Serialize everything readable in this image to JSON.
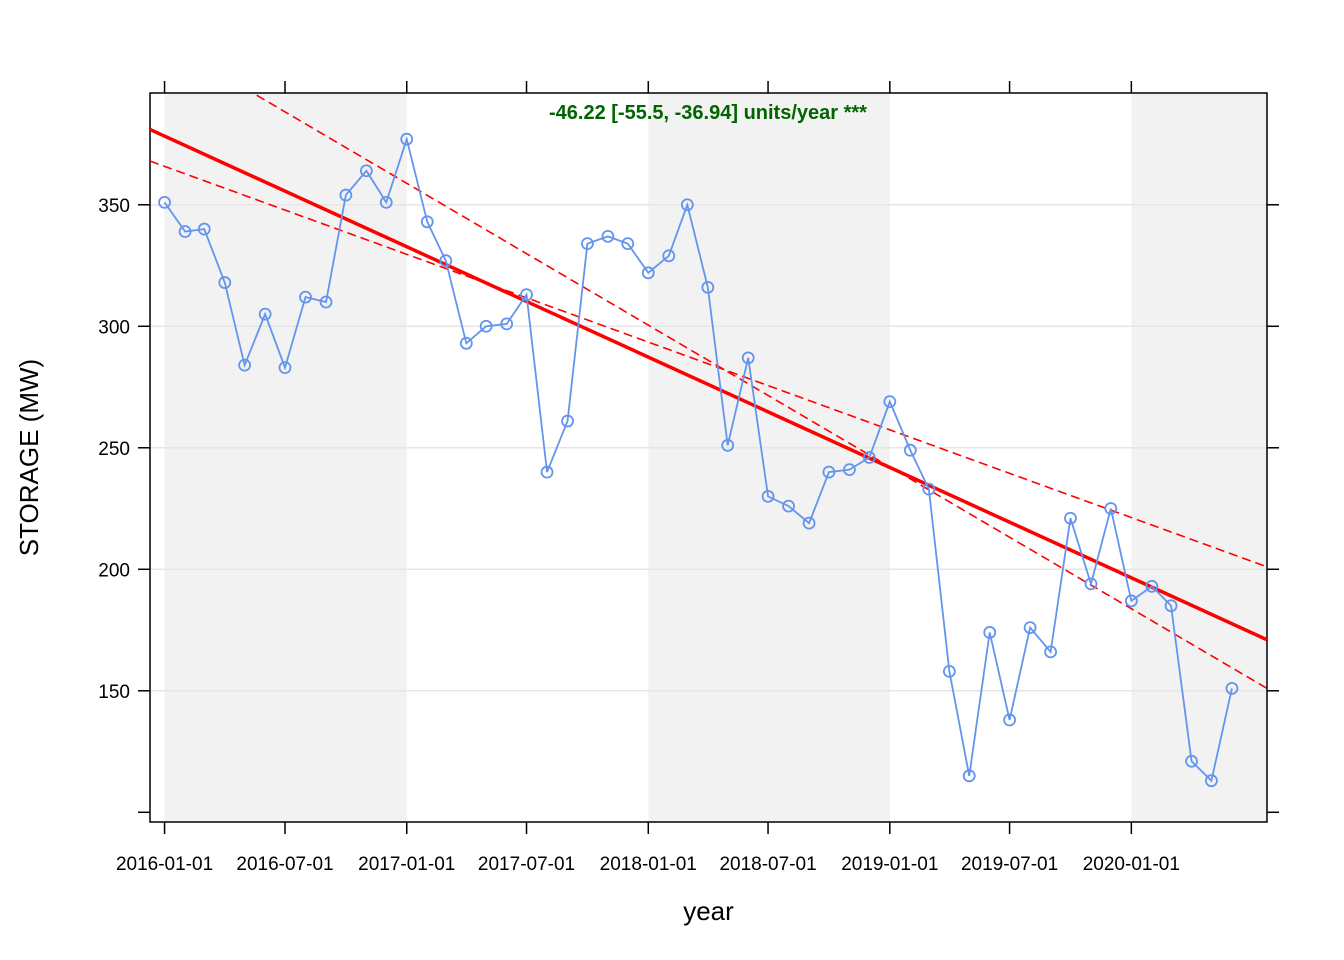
{
  "chart_data": {
    "type": "line",
    "xlabel": "year",
    "ylabel": "STORAGE (MW)",
    "annotation": "-46.22 [-55.5, -36.94] units/year ***",
    "x_tick_labels": [
      "2016-01-01",
      "2016-07-01",
      "2017-01-01",
      "2017-07-01",
      "2018-01-01",
      "2018-07-01",
      "2019-01-01",
      "2019-07-01",
      "2020-01-01"
    ],
    "y_ticks": [
      100,
      150,
      200,
      250,
      300,
      350
    ],
    "y_tick_labels": [
      "",
      "150",
      "200",
      "250",
      "300",
      "350"
    ],
    "xlim": [
      "2015-12-10",
      "2020-07-24"
    ],
    "ylim": [
      96,
      396
    ],
    "shaded_years": [
      2016,
      2018,
      2020
    ],
    "colors": {
      "series": "#6495ed",
      "trend": "#ff0000",
      "annotation": "#006400",
      "shade": "#f2f2f2",
      "grid": "#e6e6e6"
    },
    "series": [
      {
        "x": [
          "2016-01-01",
          "2016-02-01",
          "2016-03-01",
          "2016-04-01",
          "2016-05-01",
          "2016-06-01",
          "2016-07-01",
          "2016-08-01",
          "2016-09-01",
          "2016-10-01",
          "2016-11-01",
          "2016-12-01",
          "2017-01-01",
          "2017-02-01",
          "2017-03-01",
          "2017-04-01",
          "2017-05-01",
          "2017-06-01",
          "2017-07-01",
          "2017-08-01",
          "2017-09-01",
          "2017-10-01",
          "2017-11-01",
          "2017-12-01",
          "2018-01-01",
          "2018-02-01",
          "2018-03-01",
          "2018-04-01",
          "2018-05-01",
          "2018-06-01",
          "2018-07-01",
          "2018-08-01",
          "2018-09-01",
          "2018-10-01",
          "2018-11-01",
          "2018-12-01",
          "2019-01-01",
          "2019-02-01",
          "2019-03-01",
          "2019-04-01",
          "2019-05-01",
          "2019-06-01",
          "2019-07-01",
          "2019-08-01",
          "2019-09-01",
          "2019-10-01",
          "2019-11-01",
          "2019-12-01",
          "2020-01-01",
          "2020-02-01",
          "2020-03-01",
          "2020-04-01",
          "2020-05-01",
          "2020-06-01"
        ],
        "y": [
          351,
          339,
          340,
          318,
          284,
          305,
          283,
          312,
          310,
          354,
          364,
          351,
          377,
          343,
          327,
          293,
          300,
          301,
          313,
          240,
          261,
          334,
          337,
          334,
          322,
          329,
          350,
          316,
          251,
          287,
          230,
          226,
          219,
          240,
          241,
          246,
          269,
          249,
          233,
          158,
          115,
          174,
          138,
          176,
          166,
          221,
          194,
          225,
          187,
          193,
          185,
          121,
          113,
          151
        ]
      }
    ],
    "trend": {
      "x_start": "2015-12-10",
      "y_start": 381,
      "x_end": "2020-07-24",
      "y_end": 171
    },
    "ci_upper": {
      "x_start": "2015-12-10",
      "y_start": 368,
      "x_end": "2020-07-24",
      "y_end": 201
    },
    "ci_lower": {
      "x_start": "2016-05-01",
      "y_start": 398,
      "x_end": "2020-07-24",
      "y_end": 151
    }
  }
}
